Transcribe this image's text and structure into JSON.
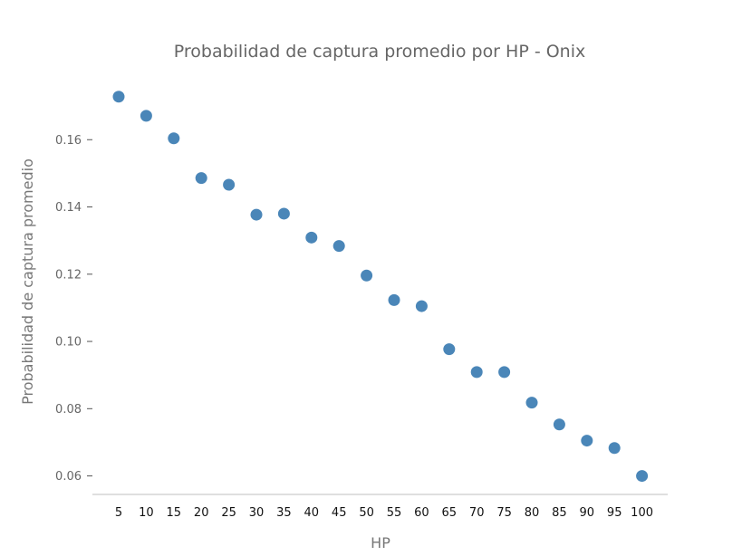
{
  "chart_data": {
    "type": "scatter",
    "title": "Probabilidad de captura promedio por HP - Onix",
    "xlabel": "HP",
    "ylabel": "Probabilidad de captura promedio",
    "x": [
      5,
      10,
      15,
      20,
      25,
      30,
      35,
      40,
      45,
      50,
      55,
      60,
      65,
      70,
      75,
      80,
      85,
      90,
      95,
      100
    ],
    "y": [
      0.1728,
      0.1671,
      0.1604,
      0.1486,
      0.1466,
      0.1377,
      0.138,
      0.1309,
      0.1284,
      0.1196,
      0.1123,
      0.1105,
      0.0977,
      0.0909,
      0.0909,
      0.0818,
      0.0753,
      0.0705,
      0.0683,
      0.06
    ],
    "yticks": [
      "0.06",
      "0.08",
      "0.10",
      "0.12",
      "0.14",
      "0.16"
    ],
    "xticks": [
      "5",
      "10",
      "15",
      "20",
      "25",
      "30",
      "35",
      "40",
      "45",
      "50",
      "55",
      "60",
      "65",
      "70",
      "75",
      "80",
      "85",
      "90",
      "95",
      "100"
    ],
    "ylim": [
      0.0545,
      0.18
    ],
    "grid": false,
    "color": "#4a86b8"
  }
}
